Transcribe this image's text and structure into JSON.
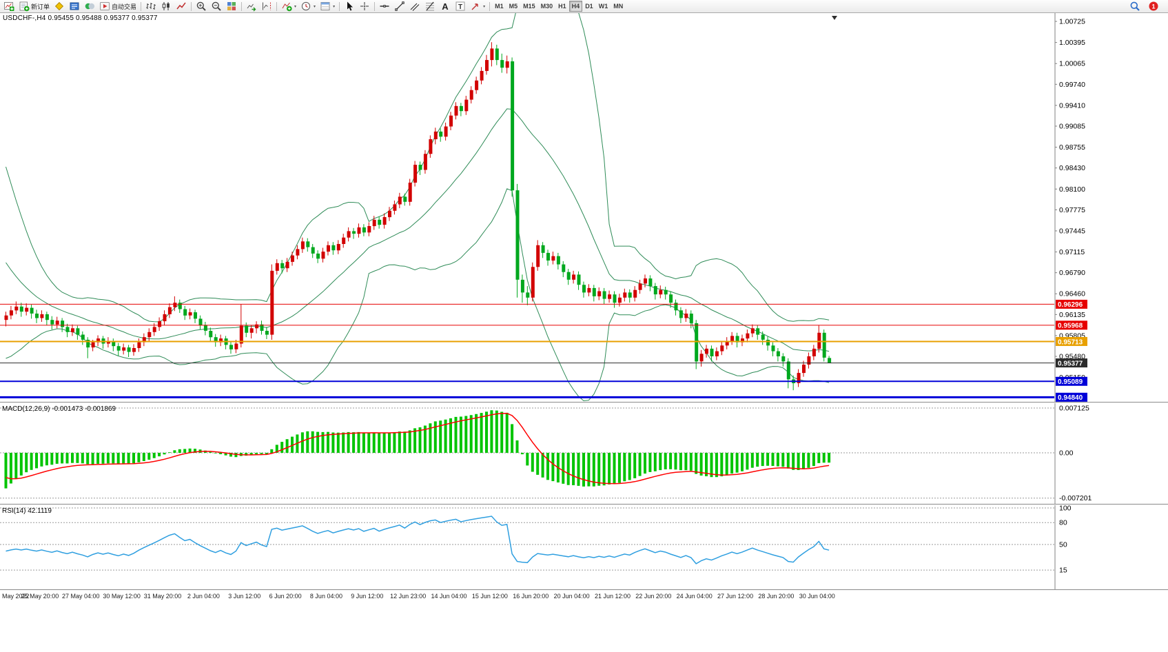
{
  "toolbar": {
    "buttons": [
      {
        "name": "new-chart",
        "icon": "new-chart"
      },
      {
        "name": "new-order",
        "icon": "order",
        "label": "新订单"
      },
      {
        "name": "metaeditor",
        "icon": "metaeditor"
      },
      {
        "name": "market-watch",
        "icon": "market-watch"
      },
      {
        "name": "navigator",
        "icon": "navigator"
      },
      {
        "name": "auto-trading",
        "icon": "auto-trading",
        "label": "自动交易"
      },
      {
        "sep": true
      },
      {
        "name": "bar-chart",
        "icon": "bar-chart"
      },
      {
        "name": "candlestick-chart",
        "icon": "candle-chart"
      },
      {
        "name": "line-chart",
        "icon": "line-chart"
      },
      {
        "sep": true
      },
      {
        "name": "zoom-in",
        "icon": "zoom-in"
      },
      {
        "name": "zoom-out",
        "icon": "zoom-out"
      },
      {
        "name": "tile-windows",
        "icon": "tile"
      },
      {
        "sep": true
      },
      {
        "name": "auto-scroll",
        "icon": "auto-scroll"
      },
      {
        "name": "chart-shift",
        "icon": "chart-shift"
      },
      {
        "sep": true
      },
      {
        "name": "indicators",
        "icon": "indicators",
        "dropdown": true
      },
      {
        "name": "periods",
        "icon": "clock",
        "dropdown": true
      },
      {
        "name": "templates",
        "icon": "template",
        "dropdown": true
      },
      {
        "sep": true
      },
      {
        "name": "cursor",
        "icon": "cursor"
      },
      {
        "name": "crosshair",
        "icon": "crosshair"
      },
      {
        "sep": true
      },
      {
        "name": "horizontal-line",
        "icon": "hline"
      },
      {
        "name": "trendline",
        "icon": "trendline"
      },
      {
        "name": "equidistant-channel",
        "icon": "channel"
      },
      {
        "name": "fibonacci",
        "icon": "fibo"
      },
      {
        "name": "text",
        "icon": "text-a"
      },
      {
        "name": "text-label",
        "icon": "text-t"
      },
      {
        "name": "arrows",
        "icon": "arrow-tool",
        "dropdown": true
      },
      {
        "sep": true
      }
    ],
    "timeframes": [
      "M1",
      "M5",
      "M15",
      "M30",
      "H1",
      "H4",
      "D1",
      "W1",
      "MN"
    ],
    "active_timeframe": "H4",
    "right_icons": [
      {
        "name": "search",
        "icon": "search"
      },
      {
        "name": "notifications",
        "icon": "badge",
        "badge": "1"
      }
    ]
  },
  "chart": {
    "header": "USDCHF-,H4  0.95455 0.95488 0.95377 0.95377",
    "symbol": "USDCHF-",
    "period": "H4",
    "ohlc": {
      "open": "0.95455",
      "high": "0.95488",
      "low": "0.95377",
      "close": "0.95377"
    },
    "y_axis_labels": [
      "1.00725",
      "1.00395",
      "1.00065",
      "0.99740",
      "0.99410",
      "0.99085",
      "0.98755",
      "0.98430",
      "0.98100",
      "0.97775",
      "0.97445",
      "0.97115",
      "0.96790",
      "0.96460",
      "0.96135",
      "0.95805",
      "0.95480",
      "0.95150"
    ]
  },
  "chart_data": {
    "type": "candlestick",
    "symbol": "USDCHF",
    "period": "H4",
    "ylim": [
      0.94779,
      1.00855
    ],
    "colors": {
      "bull": "#D20000",
      "bear": "#00A81E",
      "bollinger": "#2E8B57",
      "axis_text": "#000000"
    },
    "hlines": [
      {
        "value": 0.96296,
        "label": "0.96296",
        "color": "#E60000",
        "width": 1
      },
      {
        "value": 0.95968,
        "label": "0.95968",
        "color": "#E60000",
        "width": 1
      },
      {
        "value": 0.95713,
        "label": "0.95713",
        "color": "#E8A000",
        "width": 2
      },
      {
        "value": 0.95377,
        "label": "0.95377",
        "color": "#2B2B2B",
        "width": 1,
        "current": true
      },
      {
        "value": 0.95089,
        "label": "0.95089",
        "color": "#0000D8",
        "width": 2
      },
      {
        "value": 0.9484,
        "label": "0.94840",
        "color": "#0000D8",
        "width": 3
      }
    ],
    "x_labels": [
      {
        "text": "May 2022",
        "bar": 0
      },
      {
        "text": "25 May 20:00",
        "bar": 7
      },
      {
        "text": "27 May 04:00",
        "bar": 15
      },
      {
        "text": "30 May 12:00",
        "bar": 23
      },
      {
        "text": "31 May 20:00",
        "bar": 31
      },
      {
        "text": "2 Jun 04:00",
        "bar": 39
      },
      {
        "text": "3 Jun 12:00",
        "bar": 47
      },
      {
        "text": "6 Jun 20:00",
        "bar": 55
      },
      {
        "text": "8 Jun 04:00",
        "bar": 63
      },
      {
        "text": "9 Jun 12:00",
        "bar": 71
      },
      {
        "text": "12 Jun 23:00",
        "bar": 79
      },
      {
        "text": "14 Jun 04:00",
        "bar": 87
      },
      {
        "text": "15 Jun 12:00",
        "bar": 95
      },
      {
        "text": "16 Jun 20:00",
        "bar": 103
      },
      {
        "text": "20 Jun 04:00",
        "bar": 111
      },
      {
        "text": "21 Jun 12:00",
        "bar": 119
      },
      {
        "text": "22 Jun 20:00",
        "bar": 127
      },
      {
        "text": "24 Jun 04:00",
        "bar": 135
      },
      {
        "text": "27 Jun 12:00",
        "bar": 143
      },
      {
        "text": "28 Jun 20:00",
        "bar": 151
      },
      {
        "text": "30 Jun 04:00",
        "bar": 159
      }
    ],
    "warmup_closes": [
      0.985,
      0.983,
      0.9808,
      0.9786,
      0.9764,
      0.9742,
      0.9722,
      0.9704,
      0.9688,
      0.9674,
      0.9662,
      0.9652,
      0.9644,
      0.9638,
      0.9633,
      0.9628,
      0.9624,
      0.962,
      0.9616
    ],
    "candles": [
      [
        0.9605,
        0.9618,
        0.9595,
        0.9612
      ],
      [
        0.9612,
        0.9627,
        0.9606,
        0.962
      ],
      [
        0.962,
        0.9634,
        0.9614,
        0.9626
      ],
      [
        0.9626,
        0.9632,
        0.961,
        0.9618
      ],
      [
        0.9618,
        0.9631,
        0.9612,
        0.9624
      ],
      [
        0.9624,
        0.9629,
        0.9607,
        0.9615
      ],
      [
        0.9615,
        0.9621,
        0.96,
        0.9608
      ],
      [
        0.9608,
        0.962,
        0.9602,
        0.9614
      ],
      [
        0.9614,
        0.9618,
        0.9597,
        0.9605
      ],
      [
        0.9605,
        0.9611,
        0.959,
        0.9598
      ],
      [
        0.9598,
        0.961,
        0.9592,
        0.9604
      ],
      [
        0.9604,
        0.9608,
        0.9586,
        0.9594
      ],
      [
        0.9594,
        0.9599,
        0.9578,
        0.9586
      ],
      [
        0.9586,
        0.9598,
        0.958,
        0.9592
      ],
      [
        0.9592,
        0.9596,
        0.9574,
        0.9582
      ],
      [
        0.9582,
        0.9587,
        0.9566,
        0.9574
      ],
      [
        0.9574,
        0.9578,
        0.9545,
        0.9562
      ],
      [
        0.9562,
        0.9574,
        0.9556,
        0.957
      ],
      [
        0.957,
        0.9581,
        0.9564,
        0.9576
      ],
      [
        0.9576,
        0.958,
        0.956,
        0.9568
      ],
      [
        0.9568,
        0.9578,
        0.9562,
        0.9572
      ],
      [
        0.9572,
        0.9576,
        0.9556,
        0.9564
      ],
      [
        0.9564,
        0.9569,
        0.9549,
        0.9557
      ],
      [
        0.9557,
        0.9568,
        0.9551,
        0.9562
      ],
      [
        0.9562,
        0.9566,
        0.9547,
        0.9555
      ],
      [
        0.9555,
        0.9567,
        0.9549,
        0.9561
      ],
      [
        0.9561,
        0.9576,
        0.9555,
        0.957
      ],
      [
        0.957,
        0.9584,
        0.9564,
        0.9578
      ],
      [
        0.9578,
        0.9592,
        0.9572,
        0.9586
      ],
      [
        0.9586,
        0.96,
        0.958,
        0.9594
      ],
      [
        0.9594,
        0.9609,
        0.9588,
        0.9603
      ],
      [
        0.9603,
        0.962,
        0.9597,
        0.9614
      ],
      [
        0.9614,
        0.9631,
        0.9608,
        0.9625
      ],
      [
        0.9625,
        0.9642,
        0.9619,
        0.9632
      ],
      [
        0.9632,
        0.9637,
        0.9616,
        0.9622
      ],
      [
        0.9622,
        0.9627,
        0.9605,
        0.9612
      ],
      [
        0.9612,
        0.9623,
        0.9606,
        0.9617
      ],
      [
        0.9617,
        0.9621,
        0.96,
        0.9607
      ],
      [
        0.9607,
        0.9612,
        0.959,
        0.9597
      ],
      [
        0.9597,
        0.9602,
        0.9581,
        0.9588
      ],
      [
        0.9588,
        0.9593,
        0.9571,
        0.9578
      ],
      [
        0.9578,
        0.9583,
        0.9563,
        0.957
      ],
      [
        0.957,
        0.9582,
        0.9564,
        0.9576
      ],
      [
        0.9576,
        0.958,
        0.9559,
        0.9566
      ],
      [
        0.9566,
        0.9571,
        0.9552,
        0.9559
      ],
      [
        0.9559,
        0.9574,
        0.9553,
        0.9568
      ],
      [
        0.9568,
        0.963,
        0.9562,
        0.9596
      ],
      [
        0.9596,
        0.9601,
        0.9578,
        0.9585
      ],
      [
        0.9585,
        0.9597,
        0.9576,
        0.9592
      ],
      [
        0.9592,
        0.9603,
        0.9584,
        0.9598
      ],
      [
        0.9598,
        0.9604,
        0.9582,
        0.9588
      ],
      [
        0.9588,
        0.9594,
        0.9575,
        0.9582
      ],
      [
        0.9582,
        0.9692,
        0.9574,
        0.9682
      ],
      [
        0.9682,
        0.97,
        0.9676,
        0.9694
      ],
      [
        0.9694,
        0.9699,
        0.9678,
        0.9686
      ],
      [
        0.9686,
        0.9702,
        0.968,
        0.9696
      ],
      [
        0.9696,
        0.9712,
        0.969,
        0.9706
      ],
      [
        0.9706,
        0.9722,
        0.97,
        0.9716
      ],
      [
        0.9716,
        0.9734,
        0.971,
        0.9728
      ],
      [
        0.9728,
        0.9733,
        0.9712,
        0.9719
      ],
      [
        0.9719,
        0.9724,
        0.9702,
        0.9709
      ],
      [
        0.9709,
        0.9714,
        0.9694,
        0.9701
      ],
      [
        0.9701,
        0.9718,
        0.9695,
        0.9712
      ],
      [
        0.9712,
        0.9728,
        0.9706,
        0.9722
      ],
      [
        0.9722,
        0.9727,
        0.9707,
        0.9714
      ],
      [
        0.9714,
        0.973,
        0.9708,
        0.9724
      ],
      [
        0.9724,
        0.974,
        0.9718,
        0.9734
      ],
      [
        0.9734,
        0.975,
        0.9728,
        0.9744
      ],
      [
        0.9744,
        0.9749,
        0.9732,
        0.974
      ],
      [
        0.974,
        0.9756,
        0.9734,
        0.975
      ],
      [
        0.975,
        0.9755,
        0.9736,
        0.9742
      ],
      [
        0.9742,
        0.9758,
        0.9736,
        0.9752
      ],
      [
        0.9752,
        0.9768,
        0.9746,
        0.9762
      ],
      [
        0.9762,
        0.9767,
        0.9748,
        0.9754
      ],
      [
        0.9754,
        0.9772,
        0.9748,
        0.9766
      ],
      [
        0.9766,
        0.9782,
        0.976,
        0.9776
      ],
      [
        0.9776,
        0.9792,
        0.977,
        0.9786
      ],
      [
        0.9786,
        0.9804,
        0.978,
        0.9798
      ],
      [
        0.9798,
        0.9803,
        0.9784,
        0.979
      ],
      [
        0.979,
        0.9826,
        0.9784,
        0.982
      ],
      [
        0.982,
        0.9854,
        0.9814,
        0.9848
      ],
      [
        0.9848,
        0.9853,
        0.9832,
        0.984
      ],
      [
        0.984,
        0.9871,
        0.9834,
        0.9865
      ],
      [
        0.9865,
        0.9894,
        0.9859,
        0.9888
      ],
      [
        0.9888,
        0.9906,
        0.988,
        0.99
      ],
      [
        0.99,
        0.9905,
        0.9884,
        0.9892
      ],
      [
        0.9892,
        0.9914,
        0.9886,
        0.9908
      ],
      [
        0.9908,
        0.9931,
        0.9902,
        0.9925
      ],
      [
        0.9925,
        0.9946,
        0.9919,
        0.994
      ],
      [
        0.994,
        0.9945,
        0.9924,
        0.9932
      ],
      [
        0.9932,
        0.9956,
        0.9926,
        0.995
      ],
      [
        0.995,
        0.9971,
        0.9944,
        0.9965
      ],
      [
        0.9965,
        0.9986,
        0.9959,
        0.998
      ],
      [
        0.998,
        1.0001,
        0.9974,
        0.9995
      ],
      [
        0.9995,
        1.002,
        0.9989,
        1.0012
      ],
      [
        1.0012,
        1.004,
        1.0002,
        1.003
      ],
      [
        1.003,
        1.0036,
        1.0004,
        1.0012
      ],
      [
        1.0012,
        1.0022,
        0.9992,
        1.0
      ],
      [
        1.0,
        1.0019,
        0.9991,
        1.001
      ],
      [
        1.001,
        1.0016,
        0.9798,
        0.9808
      ],
      [
        0.9808,
        0.9818,
        0.964,
        0.9668
      ],
      [
        0.9668,
        0.9676,
        0.9632,
        0.9648
      ],
      [
        0.9648,
        0.9658,
        0.9628,
        0.964
      ],
      [
        0.964,
        0.9695,
        0.9634,
        0.9688
      ],
      [
        0.9688,
        0.973,
        0.9682,
        0.9722
      ],
      [
        0.9722,
        0.9727,
        0.9702,
        0.971
      ],
      [
        0.971,
        0.9715,
        0.969,
        0.9698
      ],
      [
        0.9698,
        0.9712,
        0.9692,
        0.9705
      ],
      [
        0.9705,
        0.971,
        0.9684,
        0.9692
      ],
      [
        0.9692,
        0.9697,
        0.9672,
        0.968
      ],
      [
        0.968,
        0.9685,
        0.966,
        0.9668
      ],
      [
        0.9668,
        0.9682,
        0.9662,
        0.9676
      ],
      [
        0.9676,
        0.9681,
        0.9652,
        0.966
      ],
      [
        0.966,
        0.9665,
        0.964,
        0.9648
      ],
      [
        0.9648,
        0.9661,
        0.9642,
        0.9655
      ],
      [
        0.9655,
        0.966,
        0.9634,
        0.9642
      ],
      [
        0.9642,
        0.9656,
        0.9636,
        0.965
      ],
      [
        0.965,
        0.9655,
        0.963,
        0.9638
      ],
      [
        0.9638,
        0.9651,
        0.9632,
        0.9645
      ],
      [
        0.9645,
        0.965,
        0.9624,
        0.9632
      ],
      [
        0.9632,
        0.9646,
        0.9626,
        0.964
      ],
      [
        0.964,
        0.9654,
        0.9634,
        0.9648
      ],
      [
        0.9648,
        0.9653,
        0.9632,
        0.964
      ],
      [
        0.964,
        0.9658,
        0.9634,
        0.9652
      ],
      [
        0.9652,
        0.9668,
        0.9646,
        0.9662
      ],
      [
        0.9662,
        0.9676,
        0.9656,
        0.967
      ],
      [
        0.967,
        0.9675,
        0.965,
        0.9658
      ],
      [
        0.9658,
        0.9663,
        0.9637,
        0.9645
      ],
      [
        0.9645,
        0.9659,
        0.9639,
        0.9652
      ],
      [
        0.9652,
        0.9657,
        0.9637,
        0.9645
      ],
      [
        0.9645,
        0.965,
        0.9624,
        0.9632
      ],
      [
        0.9632,
        0.9637,
        0.9612,
        0.962
      ],
      [
        0.962,
        0.9625,
        0.96,
        0.9608
      ],
      [
        0.9608,
        0.9622,
        0.9602,
        0.9615
      ],
      [
        0.9615,
        0.962,
        0.9592,
        0.96
      ],
      [
        0.96,
        0.9605,
        0.9528,
        0.954
      ],
      [
        0.954,
        0.9558,
        0.9532,
        0.9552
      ],
      [
        0.9552,
        0.9566,
        0.9546,
        0.956
      ],
      [
        0.956,
        0.9565,
        0.954,
        0.9548
      ],
      [
        0.9548,
        0.9562,
        0.9542,
        0.9556
      ],
      [
        0.9556,
        0.9571,
        0.955,
        0.9565
      ],
      [
        0.9565,
        0.9578,
        0.9559,
        0.9572
      ],
      [
        0.9572,
        0.9586,
        0.9566,
        0.958
      ],
      [
        0.958,
        0.9585,
        0.9562,
        0.957
      ],
      [
        0.957,
        0.9582,
        0.9564,
        0.9576
      ],
      [
        0.9576,
        0.959,
        0.957,
        0.9584
      ],
      [
        0.9584,
        0.9598,
        0.9578,
        0.9592
      ],
      [
        0.9592,
        0.9597,
        0.9574,
        0.9582
      ],
      [
        0.9582,
        0.9587,
        0.9566,
        0.9574
      ],
      [
        0.9574,
        0.9579,
        0.9557,
        0.9565
      ],
      [
        0.9565,
        0.957,
        0.9548,
        0.9556
      ],
      [
        0.9556,
        0.9561,
        0.954,
        0.9548
      ],
      [
        0.9548,
        0.9553,
        0.9532,
        0.954
      ],
      [
        0.954,
        0.9545,
        0.9498,
        0.9512
      ],
      [
        0.9512,
        0.9518,
        0.9495,
        0.9506
      ],
      [
        0.9506,
        0.9528,
        0.95,
        0.9522
      ],
      [
        0.9522,
        0.9541,
        0.9516,
        0.9535
      ],
      [
        0.9535,
        0.9554,
        0.9529,
        0.9548
      ],
      [
        0.9548,
        0.9566,
        0.9542,
        0.956
      ],
      [
        0.956,
        0.9597,
        0.9554,
        0.9585
      ],
      [
        0.9585,
        0.959,
        0.954,
        0.9546
      ],
      [
        0.95455,
        0.95488,
        0.95377,
        0.95377
      ]
    ],
    "indicators": {
      "bollinger": {
        "period": 20,
        "deviation": 2,
        "color": "#2E8B57"
      },
      "macd": {
        "display": "MACD(12,26,9) -0.001473 -0.001869",
        "fast": 12,
        "slow": 26,
        "signal": 9,
        "value_text": "-0.001473",
        "signal_text": "-0.001869",
        "axis_labels": [
          "0.007125",
          "0.00",
          "-0.007201"
        ],
        "bar_color": "#00C400",
        "signal_color": "#FF0000",
        "seed": {
          "ema_fast_offset": -0.0045,
          "ema_slow_offset": 0.002,
          "signal_start": -0.0035
        }
      },
      "rsi": {
        "display": "RSI(14) 42.1119",
        "period": 14,
        "value_text": "42.1119",
        "axis_labels": [
          "100",
          "80",
          "50",
          "15"
        ],
        "levels": [
          100,
          80,
          50,
          15
        ],
        "color": "#2F9FE0",
        "seed": {
          "avg_gain": 0.0009,
          "avg_loss": 0.0013
        }
      }
    }
  }
}
